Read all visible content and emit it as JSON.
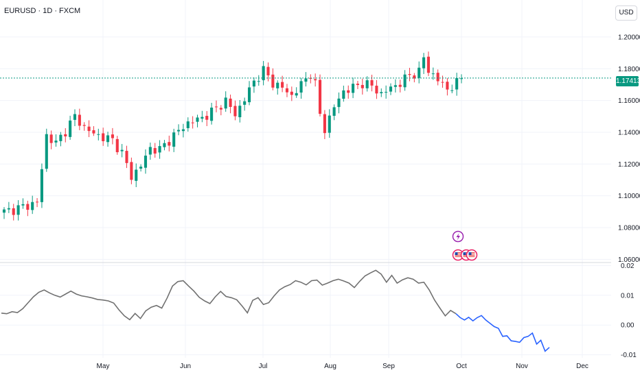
{
  "header": {
    "title": "EURUSD · 1D · FXCM",
    "currency_label": "USD",
    "last_price": "1.17413"
  },
  "colors": {
    "up": "#089981",
    "down": "#f23645",
    "indicator_line": "#707070",
    "projection_line": "#2962ff",
    "price_line": "#089981",
    "grid": "#f0f3fa"
  },
  "icons": [
    "lightning-event-icon",
    "us-flag-event-icon"
  ],
  "chart_data": [
    {
      "type": "candlestick",
      "title": "EURUSD · 1D · FXCM",
      "y_unit": "USD",
      "y_ticks": [
        "1.20000",
        "1.18000",
        "1.16000",
        "1.14000",
        "1.12000",
        "1.10000",
        "1.08000",
        "1.06000"
      ],
      "ylim": [
        1.058,
        1.206
      ],
      "x_ticks": [
        "May",
        "Jun",
        "Jul",
        "Aug",
        "Sep",
        "Oct",
        "Nov",
        "Dec"
      ],
      "last_price": 1.17413,
      "grid": true,
      "close_waypoints": [
        [
          0,
          1.09
        ],
        [
          4,
          1.093
        ],
        [
          7,
          1.096
        ],
        [
          9,
          1.138
        ],
        [
          11,
          1.133
        ],
        [
          13,
          1.141
        ],
        [
          15,
          1.15
        ],
        [
          17,
          1.143
        ],
        [
          19,
          1.139
        ],
        [
          21,
          1.137
        ],
        [
          23,
          1.135
        ],
        [
          25,
          1.127
        ],
        [
          27,
          1.112
        ],
        [
          29,
          1.119
        ],
        [
          31,
          1.13
        ],
        [
          33,
          1.129
        ],
        [
          36,
          1.138
        ],
        [
          39,
          1.146
        ],
        [
          42,
          1.149
        ],
        [
          45,
          1.155
        ],
        [
          47,
          1.16
        ],
        [
          49,
          1.151
        ],
        [
          51,
          1.161
        ],
        [
          53,
          1.172
        ],
        [
          55,
          1.179
        ],
        [
          57,
          1.171
        ],
        [
          59,
          1.168
        ],
        [
          61,
          1.163
        ],
        [
          63,
          1.17
        ],
        [
          65,
          1.177
        ],
        [
          66,
          1.17
        ],
        [
          67,
          1.151
        ],
        [
          68,
          1.142
        ],
        [
          70,
          1.156
        ],
        [
          72,
          1.166
        ],
        [
          74,
          1.168
        ],
        [
          76,
          1.171
        ],
        [
          78,
          1.169
        ],
        [
          80,
          1.164
        ],
        [
          82,
          1.168
        ],
        [
          84,
          1.171
        ],
        [
          86,
          1.176
        ],
        [
          88,
          1.178
        ],
        [
          89,
          1.187
        ],
        [
          90,
          1.179
        ],
        [
          92,
          1.173
        ],
        [
          94,
          1.167
        ],
        [
          96,
          1.171
        ],
        [
          97,
          1.174
        ]
      ],
      "candle_count": 98,
      "events": [
        "lightning",
        "us-flag",
        "us-flag",
        "us-flag"
      ]
    },
    {
      "type": "line",
      "y_ticks": [
        "0.02",
        "0.01",
        "0.00",
        "-0.01"
      ],
      "ylim": [
        -0.011,
        0.021
      ],
      "series": [
        {
          "style": "historical",
          "values": [
            0.004,
            0.0038,
            0.0045,
            0.0042,
            0.0055,
            0.0075,
            0.0095,
            0.011,
            0.0118,
            0.0108,
            0.01,
            0.0094,
            0.0104,
            0.0114,
            0.0104,
            0.0098,
            0.0095,
            0.0091,
            0.0086,
            0.0084,
            0.0081,
            0.0074,
            0.0051,
            0.0031,
            0.0018,
            0.0039,
            0.0022,
            0.0048,
            0.006,
            0.0066,
            0.0057,
            0.0091,
            0.0131,
            0.0146,
            0.0149,
            0.0131,
            0.0114,
            0.0093,
            0.0081,
            0.0072,
            0.0095,
            0.0113,
            0.0096,
            0.0092,
            0.0085,
            0.0064,
            0.0041,
            0.0083,
            0.0092,
            0.0069,
            0.0075,
            0.0098,
            0.0118,
            0.0129,
            0.0136,
            0.0149,
            0.0144,
            0.0135,
            0.0149,
            0.0151,
            0.0134,
            0.0141,
            0.0149,
            0.0154,
            0.0148,
            0.0141,
            0.0126,
            0.0147,
            0.0165,
            0.0175,
            0.0184,
            0.0171,
            0.0144,
            0.0167,
            0.0141,
            0.0152,
            0.0159,
            0.0154,
            0.0141,
            0.0144,
            0.0118,
            0.0084,
            0.0057,
            0.0031,
            0.0049,
            0.0038
          ]
        },
        {
          "style": "projection",
          "values": [
            0.0038,
            0.0025,
            0.0017,
            0.0026,
            0.0014,
            0.0025,
            0.0032,
            0.0017,
            0.0006,
            -0.0005,
            -0.0011,
            -0.0038,
            -0.0036,
            -0.0053,
            -0.0055,
            -0.0058,
            -0.0042,
            -0.0038,
            -0.0027,
            -0.0064,
            -0.0051,
            -0.0088,
            -0.0075
          ]
        }
      ]
    }
  ]
}
